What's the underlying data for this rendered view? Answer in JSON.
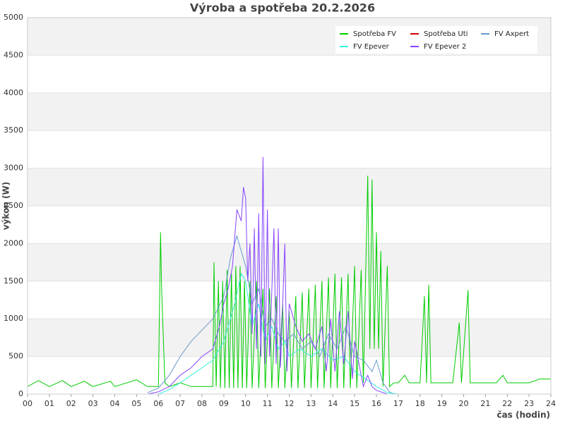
{
  "chart_data": {
    "type": "line",
    "title": "Výroba a spotřeba 20.2.2026",
    "xlabel": "čas (hodin)",
    "ylabel": "výkon (W)",
    "xlim": [
      0,
      24
    ],
    "xticks": [
      {
        "value": 0,
        "label": "00"
      },
      {
        "value": 1,
        "label": "01"
      },
      {
        "value": 2,
        "label": "02"
      },
      {
        "value": 3,
        "label": "03"
      },
      {
        "value": 4,
        "label": "04"
      },
      {
        "value": 5,
        "label": "05"
      },
      {
        "value": 6,
        "label": "06"
      },
      {
        "value": 7,
        "label": "07"
      },
      {
        "value": 8,
        "label": "08"
      },
      {
        "value": 9,
        "label": "09"
      },
      10,
      11,
      12,
      13,
      14,
      15,
      16,
      17,
      18,
      19,
      20,
      21,
      22,
      23,
      24
    ],
    "ylim": [
      0,
      5000
    ],
    "yticks": [
      0,
      500,
      1000,
      1500,
      2000,
      2500,
      3000,
      3500,
      4000,
      4500,
      5000
    ],
    "grid": true,
    "legend": "top-right",
    "series": [
      {
        "name": "Spotřeba FV",
        "color": "#00cc00",
        "x": [
          0,
          0.5,
          1,
          1.6,
          2,
          2.6,
          3,
          3.8,
          4,
          5,
          5.5,
          6,
          6.1,
          6.15,
          6.3,
          6.5,
          7,
          7.5,
          8,
          8.5,
          8.55,
          8.65,
          8.75,
          8.85,
          8.95,
          9.05,
          9.15,
          9.25,
          9.35,
          9.45,
          9.55,
          9.65,
          9.75,
          9.85,
          9.95,
          10.05,
          10.2,
          10.3,
          10.5,
          10.6,
          10.8,
          10.9,
          11.1,
          11.2,
          11.4,
          11.5,
          11.7,
          11.8,
          12,
          12.1,
          12.3,
          12.4,
          12.6,
          12.7,
          12.9,
          13,
          13.2,
          13.3,
          13.5,
          13.6,
          13.8,
          13.9,
          14.1,
          14.2,
          14.4,
          14.5,
          14.7,
          14.8,
          15,
          15.1,
          15.3,
          15.4,
          15.6,
          15.7,
          15.8,
          15.9,
          16,
          16.1,
          16.2,
          16.3,
          16.5,
          16.6,
          16.8,
          17,
          17.3,
          17.5,
          18,
          18.2,
          18.3,
          18.4,
          18.5,
          19,
          19.5,
          19.8,
          19.9,
          20.2,
          20.3,
          21,
          21.5,
          21.8,
          22,
          23,
          23.5,
          24
        ],
        "values": [
          100,
          180,
          100,
          180,
          100,
          170,
          100,
          170,
          100,
          190,
          100,
          100,
          2150,
          1380,
          150,
          100,
          150,
          100,
          100,
          100,
          1750,
          100,
          1500,
          80,
          1500,
          80,
          1650,
          80,
          1600,
          80,
          1700,
          80,
          1700,
          80,
          1500,
          80,
          1500,
          80,
          1500,
          80,
          1400,
          80,
          1400,
          80,
          1300,
          80,
          1200,
          80,
          1100,
          80,
          1300,
          80,
          1350,
          80,
          1400,
          80,
          1450,
          80,
          1500,
          80,
          1550,
          80,
          1600,
          80,
          1550,
          80,
          1600,
          80,
          1700,
          80,
          1650,
          150,
          2900,
          600,
          2850,
          600,
          2150,
          600,
          1900,
          100,
          1700,
          100,
          150,
          150,
          250,
          150,
          150,
          1300,
          150,
          1450,
          150,
          150,
          150,
          950,
          150,
          1380,
          150,
          150,
          150,
          250,
          150,
          150,
          200,
          200
        ]
      },
      {
        "name": "Spotřeba Uti",
        "color": "#cc0000",
        "x": [
          0,
          24
        ],
        "values": [
          0,
          0
        ]
      },
      {
        "name": "FV Axpert",
        "color": "#6699cc",
        "x": [
          5.5,
          6,
          6.5,
          7,
          7.5,
          8,
          8.5,
          9,
          9.3,
          9.6,
          9.8,
          10,
          10.3,
          10.6,
          10.9,
          11.2,
          11.5,
          11.8,
          12.2,
          12.6,
          13,
          13.4,
          13.8,
          14.2,
          14.6,
          15,
          15.4,
          15.8,
          16,
          16.3,
          16.6,
          16.8
        ],
        "values": [
          20,
          80,
          250,
          500,
          700,
          850,
          1000,
          1300,
          1800,
          2100,
          1900,
          1700,
          1200,
          1400,
          900,
          1000,
          800,
          700,
          800,
          600,
          700,
          500,
          800,
          600,
          900,
          500,
          450,
          300,
          450,
          150,
          30,
          0
        ]
      },
      {
        "name": "FV Epever",
        "color": "#33eedd",
        "x": [
          6,
          6.5,
          7,
          7.5,
          8,
          8.5,
          9,
          9.5,
          9.8,
          10,
          10.3,
          10.6,
          10.9,
          11.2,
          11.5,
          11.8,
          12,
          12.5,
          13,
          13.5,
          14,
          14.5,
          15,
          15.5,
          16,
          16.5,
          17
        ],
        "values": [
          0,
          60,
          150,
          250,
          350,
          450,
          700,
          1200,
          1600,
          1500,
          900,
          1200,
          700,
          900,
          600,
          700,
          500,
          600,
          500,
          600,
          450,
          500,
          300,
          200,
          100,
          20,
          0
        ]
      },
      {
        "name": "FV Epever 2",
        "color": "#8844ff",
        "x": [
          5.5,
          6,
          6.5,
          7,
          7.5,
          8,
          8.5,
          8.8,
          9,
          9.2,
          9.4,
          9.6,
          9.8,
          9.9,
          10,
          10.1,
          10.2,
          10.3,
          10.4,
          10.5,
          10.6,
          10.7,
          10.8,
          10.9,
          11,
          11.1,
          11.3,
          11.4,
          11.5,
          11.6,
          11.8,
          11.9,
          12,
          12.3,
          12.6,
          12.9,
          13.2,
          13.5,
          13.7,
          13.9,
          14.1,
          14.3,
          14.5,
          14.7,
          14.9,
          15,
          15.2,
          15.4,
          15.6,
          15.8,
          16,
          16.5
        ],
        "values": [
          0,
          30,
          100,
          250,
          350,
          500,
          600,
          900,
          1200,
          1400,
          1700,
          2450,
          2300,
          2750,
          2600,
          1500,
          2000,
          800,
          2200,
          600,
          2400,
          500,
          3150,
          400,
          2450,
          500,
          2200,
          400,
          2200,
          350,
          2000,
          300,
          1200,
          900,
          700,
          800,
          600,
          900,
          300,
          1000,
          300,
          1100,
          400,
          1100,
          200,
          700,
          400,
          100,
          250,
          100,
          50,
          0
        ]
      }
    ]
  }
}
